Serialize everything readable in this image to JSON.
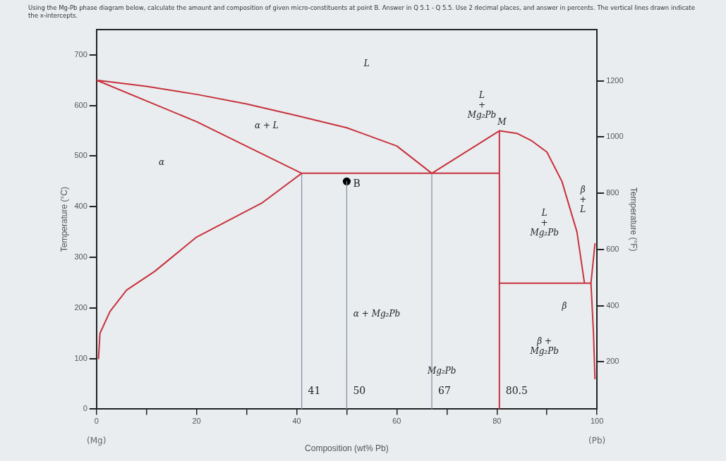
{
  "chart_data": {
    "type": "line",
    "title": "Using the Mg-Pb phase diagram below, calculate the amount and composition of given micro-constituents at point B. Answer in Q 5.1 - Q 5.5. Use 2 decimal places, and answer in percents. The vertical lines drawn indicate the x-intercepts.",
    "xlabel": "Composition (wt% Pb)",
    "ylabel": "Temperature (°C)",
    "y2label": "Temperature (°F)",
    "xlim": [
      0,
      100
    ],
    "xticks": [
      0,
      {
        "value": 10,
        "label": null
      },
      20,
      {
        "value": 30,
        "label": null
      },
      40,
      {
        "value": 50,
        "label": null
      },
      60,
      {
        "value": 70,
        "label": null
      },
      80,
      {
        "value": 90,
        "label": null
      },
      100
    ],
    "ylim": [
      0,
      750
    ],
    "yticks": [
      0,
      100,
      200,
      300,
      400,
      500,
      600,
      700
    ],
    "y2lim": [
      32,
      1382
    ],
    "y2ticks": [
      200,
      400,
      600,
      800,
      1000,
      1200
    ],
    "grid": false,
    "legend": false,
    "marker": "none",
    "series": [
      {
        "color": "#c8323c",
        "x": [
          0.4,
          0.7,
          2.7,
          6,
          11.6,
          20,
          33,
          41,
          20,
          0,
          10,
          20,
          30,
          40,
          50,
          60,
          67,
          80.5,
          84,
          87,
          90,
          93,
          96,
          97.5,
          98.8,
          99.6,
          null,
          41,
          80.5,
          null,
          80.5,
          80.5,
          null,
          80.5,
          97.5,
          null,
          98.8,
          99.3,
          99.6
        ],
        "values": [
          100,
          150,
          193,
          235,
          272,
          340,
          407,
          466,
          568,
          650,
          638,
          622,
          603,
          580,
          556,
          520,
          466,
          550,
          545,
          530,
          508,
          450,
          350,
          249,
          249,
          327,
          null,
          466,
          466,
          null,
          550,
          0,
          null,
          249,
          249,
          null,
          249,
          150,
          60
        ]
      },
      {
        "color": "#7f8fa0",
        "x": [
          41,
          41
        ],
        "values": [
          466,
          0
        ]
      },
      {
        "color": "#7f8fa0",
        "x": [
          50,
          50
        ],
        "values": [
          450,
          0
        ]
      },
      {
        "color": "#7f8fa0",
        "x": [
          67,
          67
        ],
        "values": [
          466,
          0
        ]
      },
      {
        "type": "scatter",
        "marker": "circle",
        "color": "#000000",
        "x": [
          50
        ],
        "values": [
          450
        ]
      }
    ],
    "annotations": [
      "L",
      "α + L",
      "α",
      "L\n+\nMg₂Pb",
      "α + Mg₂Pb",
      "L\n+\nMg₂Pb",
      "β\n+\nL",
      "β",
      "β +\nMg₂Pb",
      "Mg₂Pb",
      "(Mg)",
      "(Pb)",
      "M",
      {
        "text": "B",
        "x": 50,
        "y": 450
      },
      {
        "text": "80.5",
        "x": 80.5,
        "y": 40
      },
      {
        "text": "67",
        "x": 67,
        "y": 40
      },
      {
        "text": "41",
        "x": 41,
        "y": 40
      },
      {
        "text": "50",
        "x": 50,
        "y": 40
      }
    ]
  }
}
